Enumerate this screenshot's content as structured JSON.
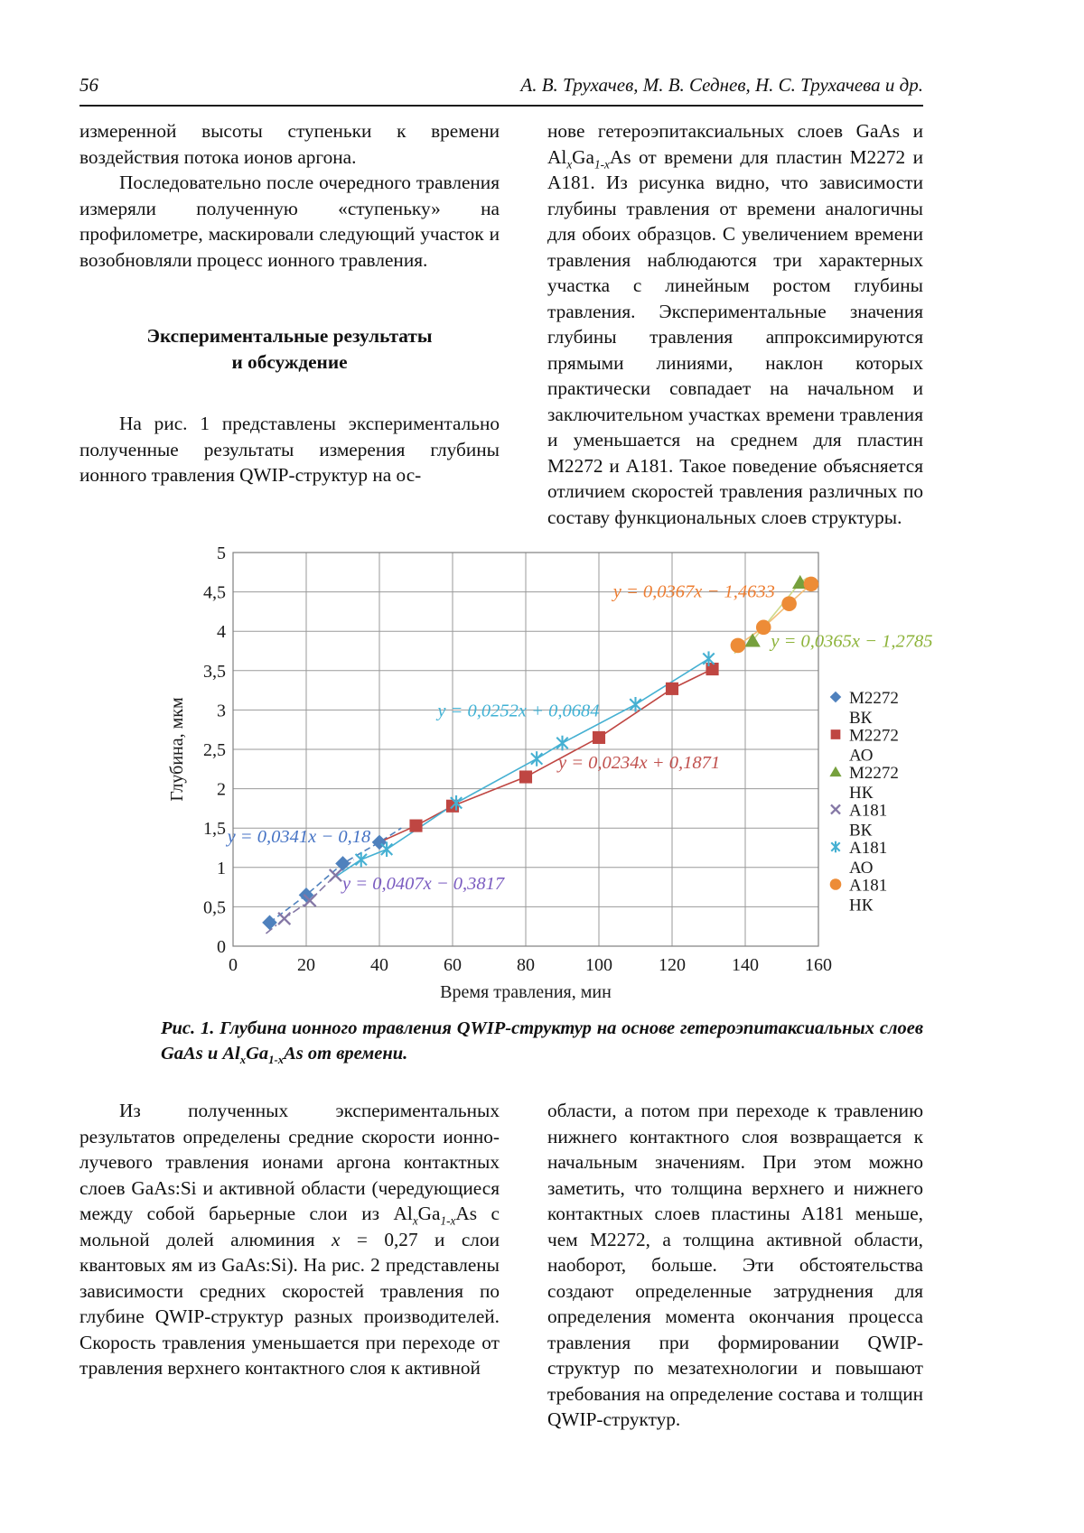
{
  "header": {
    "page_number": "56",
    "authors": "А. В. Трухачев, М. В. Седнев, Н. С. Трухачева и др."
  },
  "left_top": {
    "p1": "измеренной высоты ступеньки к времени воздействия потока ионов аргона.",
    "p2": "Последовательно после очередного травления измеряли полученную «ступеньку» на профилометре, маскировали следующий участок и возобновляли процесс ионного травления.",
    "heading1": "Экспериментальные результаты",
    "heading2": "и обсуждение",
    "p3": "На рис. 1 представлены экспериментально полученные результаты измерения глубины ионного травления QWIP-структур на ос-"
  },
  "right_top": {
    "p1_a": "нове гетероэпитаксиальных слоев GaAs и Al",
    "p1_sub1": "x",
    "p1_b": "Ga",
    "p1_sub2": "1-x",
    "p1_c": "As от времени для пластин М2272 и А181. Из рисунка видно, что зависимости глубины травления от времени аналогичны для обоих образцов. С увеличением времени травления наблюдаются три характерных участка с линейным ростом глубины травления. Экспериментальные значения глубины травления аппроксимируются прямыми линиями, наклон которых практически совпадает на начальном и заключительном участках времени травления и уменьшается на среднем для пластин М2272 и А181. Такое поведение объясняется отличием скоростей травления различных по составу функциональных слоев структуры."
  },
  "caption": {
    "a": "Рис. 1. Глубина ионного травления QWIP-структур на основе гетероэпитаксиальных слоев GaAs и Al",
    "sub1": "x",
    "b": "Ga",
    "sub2": "1-x",
    "c": "As от времени."
  },
  "left_bottom": {
    "p1_a": "Из полученных экспериментальных результатов определены средние скорости ионно-лучевого травления ионами аргона контактных слоев GaAs:Si и активной области (чередующиеся между собой барьерные слои из Al",
    "p1_sub1": "x",
    "p1_b": "Ga",
    "p1_sub2": "1-x",
    "p1_c": "As с мольной долей алюминия ",
    "p1_x": "x",
    "p1_d": " = 0,27 и слои квантовых ям из GaAs:Si). На рис. 2 представлены зависимости средних скоростей травления по глубине QWIP-структур разных производителей. Скорость травления уменьшается при переходе от травления верхнего контактного слоя к активной"
  },
  "right_bottom": {
    "p1": "области, а потом при переходе к травлению нижнего контактного слоя возвращается к начальным значениям. При этом можно заметить, что толщина верхнего и нижнего контактных слоев пластины А181 меньше, чем М2272, а толщина активной области, наоборот, больше. Эти обстоятельства создают определенные затруднения для определения момента окончания процесса травления при формировании QWIP-структур по мезатехнологии и повышают требования на определение состава и толщин QWIP-структур."
  },
  "chart_data": {
    "type": "scatter",
    "xlabel": "Время травления, мин",
    "ylabel": "Глубина, мкм",
    "xlim": [
      0,
      160
    ],
    "ylim": [
      0,
      5
    ],
    "xtick_step": 20,
    "ytick_step": 0.5,
    "grid": true,
    "legend_position": "right",
    "series": [
      {
        "name": "М2272 ВК",
        "legend": [
          "М2272",
          "ВК"
        ],
        "marker": "diamond",
        "color": "#4f81bd",
        "line_style": "dashed",
        "points": [
          [
            10,
            0.3
          ],
          [
            20,
            0.65
          ],
          [
            30,
            1.05
          ],
          [
            40,
            1.32
          ]
        ],
        "ext_end": [
          [
            46,
            1.5
          ]
        ]
      },
      {
        "name": "М2272 АО",
        "legend": [
          "М2272",
          "АО"
        ],
        "marker": "square",
        "color": "#bf4642",
        "line_style": "solid",
        "ext_start": [
          [
            40,
            1.32
          ]
        ],
        "points": [
          [
            50,
            1.53
          ],
          [
            60,
            1.78
          ],
          [
            80,
            2.15
          ],
          [
            100,
            2.65
          ],
          [
            120,
            3.27
          ],
          [
            131,
            3.52
          ]
        ]
      },
      {
        "name": "М2272 НК",
        "legend": [
          "М2272",
          "НК"
        ],
        "marker": "triangle",
        "color": "#76a03d",
        "line_color": "#cdd98a",
        "line_style": "solid",
        "ext_start": [
          [
            137,
            3.72
          ]
        ],
        "points": [
          [
            142,
            3.88
          ],
          [
            155,
            4.62
          ]
        ],
        "ext_end": [
          [
            157,
            4.68
          ]
        ]
      },
      {
        "name": "А181 ВК",
        "legend": [
          "А181",
          "ВК"
        ],
        "marker": "xcross",
        "color": "#8477a5",
        "line_style": "dashdot",
        "ext_start": [
          [
            9,
            0.16
          ]
        ],
        "points": [
          [
            14,
            0.35
          ],
          [
            21,
            0.58
          ],
          [
            28,
            0.9
          ]
        ],
        "ext_end": [
          [
            33,
            1.1
          ]
        ]
      },
      {
        "name": "А181 АО",
        "legend": [
          "А181",
          "АО"
        ],
        "marker": "asterisk",
        "color": "#45b0d2",
        "line_style": "solid",
        "ext_start": [
          [
            28,
            0.88
          ]
        ],
        "points": [
          [
            35,
            1.1
          ],
          [
            42,
            1.23
          ],
          [
            61,
            1.82
          ],
          [
            83,
            2.38
          ],
          [
            90,
            2.58
          ],
          [
            110,
            3.07
          ],
          [
            130,
            3.65
          ]
        ]
      },
      {
        "name": "А181 НК",
        "legend": [
          "А181",
          "НК"
        ],
        "marker": "circle",
        "color": "#ed8c37",
        "line_color": "#f3bd77",
        "line_style": "solid",
        "points": [
          [
            138,
            3.82
          ],
          [
            145,
            4.05
          ],
          [
            152,
            4.35
          ],
          [
            158,
            4.6
          ]
        ]
      }
    ],
    "trendlines": [
      {
        "text": "y = 0,0341x − 0,18",
        "color": "#4472c4",
        "x": 18,
        "y": 1.32,
        "anchor": "middle"
      },
      {
        "text": "y = 0,0407x − 0,3817",
        "color": "#7a5bc0",
        "x": 52,
        "y": 0.72,
        "anchor": "middle"
      },
      {
        "text": "y = 0,0252x + 0,0684",
        "color": "#3fb1d4",
        "x": 78,
        "y": 2.92,
        "anchor": "middle"
      },
      {
        "text": "y = 0,0234x + 0,1871",
        "color": "#c0504d",
        "x": 111,
        "y": 2.26,
        "anchor": "middle"
      },
      {
        "text": "y = 0,0367x − 1,4633",
        "color": "#ed7d31",
        "x": 126,
        "y": 4.43,
        "anchor": "middle"
      },
      {
        "text": "y = 0,0365x − 1,2785",
        "color": "#8db33a",
        "x": 147,
        "y": 3.8,
        "anchor": "start"
      }
    ]
  }
}
